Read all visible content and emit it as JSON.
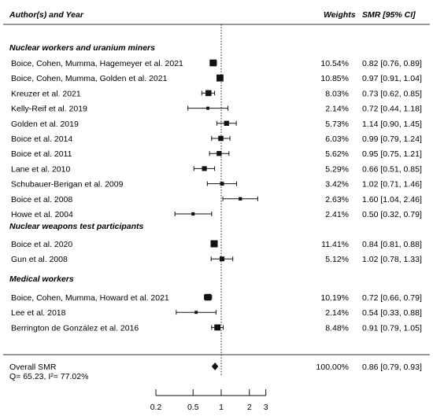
{
  "chart_data": {
    "type": "forest",
    "header": {
      "study": "Author(s) and Year",
      "weights": "Weights",
      "estimate": "SMR [95% CI]"
    },
    "x_axis": {
      "scale": "log",
      "ticks": [
        "0.2",
        "0.5",
        "1",
        "2",
        "3"
      ],
      "reference_line": 1,
      "range": [
        0.2,
        3
      ]
    },
    "groups": [
      {
        "name": "Nuclear workers and uranium miners",
        "studies": [
          {
            "label": "Boice, Cohen, Mumma, Hagemeyer et al. 2021",
            "weight": "10.54%",
            "ci_text": "0.82 [0.76, 0.89]",
            "est": 0.82,
            "lo": 0.76,
            "hi": 0.89,
            "w": 10.54
          },
          {
            "label": "Boice, Cohen, Mumma, Golden et al. 2021",
            "weight": "10.85%",
            "ci_text": "0.97 [0.91, 1.04]",
            "est": 0.97,
            "lo": 0.91,
            "hi": 1.04,
            "w": 10.85
          },
          {
            "label": "Kreuzer et al. 2021",
            "weight": "8.03%",
            "ci_text": "0.73 [0.62, 0.85]",
            "est": 0.73,
            "lo": 0.62,
            "hi": 0.85,
            "w": 8.03
          },
          {
            "label": "Kelly-Reif et al. 2019",
            "weight": "2.14%",
            "ci_text": "0.72 [0.44, 1.18]",
            "est": 0.72,
            "lo": 0.44,
            "hi": 1.18,
            "w": 2.14
          },
          {
            "label": "Golden et al. 2019",
            "weight": "5.73%",
            "ci_text": "1.14 [0.90, 1.45]",
            "est": 1.14,
            "lo": 0.9,
            "hi": 1.45,
            "w": 5.73
          },
          {
            "label": "Boice et al. 2014",
            "weight": "6.03%",
            "ci_text": "0.99 [0.79, 1.24]",
            "est": 0.99,
            "lo": 0.79,
            "hi": 1.24,
            "w": 6.03
          },
          {
            "label": "Boice et al. 2011",
            "weight": "5.62%",
            "ci_text": "0.95 [0.75, 1.21]",
            "est": 0.95,
            "lo": 0.75,
            "hi": 1.21,
            "w": 5.62
          },
          {
            "label": "Lane et al. 2010",
            "weight": "5.29%",
            "ci_text": "0.66 [0.51, 0.85]",
            "est": 0.66,
            "lo": 0.51,
            "hi": 0.85,
            "w": 5.29
          },
          {
            "label": "Schubauer-Berigan et al. 2009",
            "weight": "3.42%",
            "ci_text": "1.02 [0.71, 1.46]",
            "est": 1.02,
            "lo": 0.71,
            "hi": 1.46,
            "w": 3.42
          },
          {
            "label": "Boice et al. 2008",
            "weight": "2.63%",
            "ci_text": "1.60 [1.04, 2.46]",
            "est": 1.6,
            "lo": 1.04,
            "hi": 2.46,
            "w": 2.63
          },
          {
            "label": "Howe et al. 2004",
            "weight": "2.41%",
            "ci_text": "0.50 [0.32, 0.79]",
            "est": 0.5,
            "lo": 0.32,
            "hi": 0.79,
            "w": 2.41
          }
        ]
      },
      {
        "name": "Nuclear weapons test participants",
        "studies": [
          {
            "label": "Boice et al. 2020",
            "weight": "11.41%",
            "ci_text": "0.84 [0.81, 0.88]",
            "est": 0.84,
            "lo": 0.81,
            "hi": 0.88,
            "w": 11.41
          },
          {
            "label": "Gun et al. 2008",
            "weight": "5.12%",
            "ci_text": "1.02 [0.78, 1.33]",
            "est": 1.02,
            "lo": 0.78,
            "hi": 1.33,
            "w": 5.12
          }
        ]
      },
      {
        "name": "Medical workers",
        "studies": [
          {
            "label": "Boice, Cohen, Mumma, Howard et al. 2021",
            "weight": "10.19%",
            "ci_text": "0.72 [0.66, 0.79]",
            "est": 0.72,
            "lo": 0.66,
            "hi": 0.79,
            "w": 10.19
          },
          {
            "label": "Lee et al. 2018",
            "weight": "2.14%",
            "ci_text": "0.54 [0.33, 0.88]",
            "est": 0.54,
            "lo": 0.33,
            "hi": 0.88,
            "w": 2.14
          },
          {
            "label": "Berrington de González et al. 2016",
            "weight": "8.48%",
            "ci_text": "0.91 [0.79, 1.05]",
            "est": 0.91,
            "lo": 0.79,
            "hi": 1.05,
            "w": 8.48
          }
        ]
      }
    ],
    "overall": {
      "label": "Overall SMR",
      "heterogeneity": "Q= 65.23, I²= 77.02%",
      "weight": "100.00%",
      "ci_text": "0.86 [0.79, 0.93]",
      "est": 0.86,
      "lo": 0.79,
      "hi": 0.93
    }
  }
}
